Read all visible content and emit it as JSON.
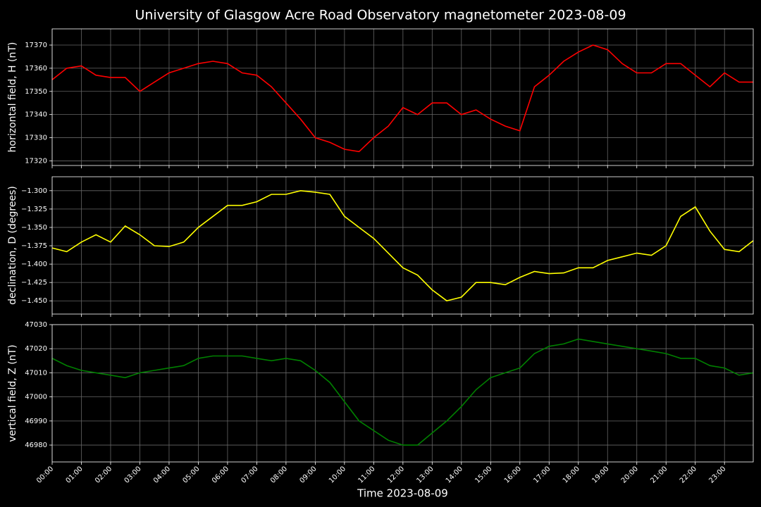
{
  "title": "University of Glasgow Acre Road Observatory magnetometer 2023-08-09",
  "chart_data": [
    {
      "type": "line",
      "ylabel": "horizontal field, H (nT)",
      "color": "#ff0000",
      "grid": true,
      "x": [
        "00:00",
        "00:30",
        "01:00",
        "01:30",
        "02:00",
        "02:30",
        "03:00",
        "03:30",
        "04:00",
        "04:30",
        "05:00",
        "05:30",
        "06:00",
        "06:30",
        "07:00",
        "07:30",
        "08:00",
        "08:30",
        "09:00",
        "09:30",
        "10:00",
        "10:30",
        "11:00",
        "11:30",
        "12:00",
        "12:30",
        "13:00",
        "13:30",
        "14:00",
        "14:30",
        "15:00",
        "15:30",
        "16:00",
        "16:30",
        "17:00",
        "17:30",
        "18:00",
        "18:30",
        "19:00",
        "19:30",
        "20:00",
        "20:30",
        "21:00",
        "21:30",
        "22:00",
        "22:30",
        "23:00",
        "23:30",
        "23:59"
      ],
      "values": [
        17355,
        17360,
        17361,
        17357,
        17356,
        17356,
        17350,
        17354,
        17358,
        17360,
        17362,
        17363,
        17362,
        17358,
        17357,
        17352,
        17345,
        17338,
        17330,
        17328,
        17325,
        17324,
        17330,
        17335,
        17343,
        17340,
        17345,
        17345,
        17340,
        17342,
        17338,
        17335,
        17333,
        17352,
        17357,
        17363,
        17367,
        17370,
        17368,
        17362,
        17358,
        17358,
        17362,
        17362,
        17357,
        17352,
        17358,
        17354,
        17354
      ],
      "xlim": [
        "00:00",
        "23:59"
      ],
      "xticks": [
        "00:00",
        "01:00",
        "02:00",
        "03:00",
        "04:00",
        "05:00",
        "06:00",
        "07:00",
        "08:00",
        "09:00",
        "10:00",
        "11:00",
        "12:00",
        "13:00",
        "14:00",
        "15:00",
        "16:00",
        "17:00",
        "18:00",
        "19:00",
        "20:00",
        "21:00",
        "22:00",
        "23:00"
      ],
      "ylim": [
        17318,
        17377
      ],
      "yticks": [
        17320,
        17330,
        17340,
        17350,
        17360,
        17370
      ]
    },
    {
      "type": "line",
      "ylabel": "declination, D (degrees)",
      "color": "#ffff00",
      "grid": true,
      "x": [
        "00:00",
        "00:30",
        "01:00",
        "01:30",
        "02:00",
        "02:30",
        "03:00",
        "03:30",
        "04:00",
        "04:30",
        "05:00",
        "05:30",
        "06:00",
        "06:30",
        "07:00",
        "07:30",
        "08:00",
        "08:30",
        "09:00",
        "09:30",
        "10:00",
        "10:30",
        "11:00",
        "11:30",
        "12:00",
        "12:30",
        "13:00",
        "13:30",
        "14:00",
        "14:30",
        "15:00",
        "15:30",
        "16:00",
        "16:30",
        "17:00",
        "17:30",
        "18:00",
        "18:30",
        "19:00",
        "19:30",
        "20:00",
        "20:30",
        "21:00",
        "21:30",
        "22:00",
        "22:30",
        "23:00",
        "23:30",
        "23:59"
      ],
      "values": [
        -1.378,
        -1.383,
        -1.37,
        -1.36,
        -1.37,
        -1.348,
        -1.36,
        -1.375,
        -1.376,
        -1.37,
        -1.35,
        -1.335,
        -1.32,
        -1.32,
        -1.315,
        -1.305,
        -1.305,
        -1.3,
        -1.302,
        -1.305,
        -1.335,
        -1.35,
        -1.365,
        -1.385,
        -1.405,
        -1.415,
        -1.435,
        -1.45,
        -1.445,
        -1.425,
        -1.425,
        -1.428,
        -1.418,
        -1.41,
        -1.413,
        -1.412,
        -1.405,
        -1.405,
        -1.395,
        -1.39,
        -1.385,
        -1.388,
        -1.375,
        -1.335,
        -1.322,
        -1.355,
        -1.38,
        -1.383,
        -1.368
      ],
      "xlim": [
        "00:00",
        "23:59"
      ],
      "xticks": [
        "00:00",
        "01:00",
        "02:00",
        "03:00",
        "04:00",
        "05:00",
        "06:00",
        "07:00",
        "08:00",
        "09:00",
        "10:00",
        "11:00",
        "12:00",
        "13:00",
        "14:00",
        "15:00",
        "16:00",
        "17:00",
        "18:00",
        "19:00",
        "20:00",
        "21:00",
        "22:00",
        "23:00"
      ],
      "ylim": [
        -1.468,
        -1.281
      ],
      "yticks": [
        {
          "value": -1.3,
          "label": "−1.300"
        },
        {
          "value": -1.325,
          "label": "−1.325"
        },
        {
          "value": -1.35,
          "label": "−1.350"
        },
        {
          "value": -1.375,
          "label": "−1.375"
        },
        {
          "value": -1.4,
          "label": "−1.400"
        },
        {
          "value": -1.425,
          "label": "−1.425"
        },
        {
          "value": -1.45,
          "label": "−1.450"
        }
      ]
    },
    {
      "type": "line",
      "ylabel": "vertical field, Z (nT)",
      "xlabel": "Time 2023-08-09",
      "color": "#008000",
      "grid": true,
      "x": [
        "00:00",
        "00:30",
        "01:00",
        "01:30",
        "02:00",
        "02:30",
        "03:00",
        "03:30",
        "04:00",
        "04:30",
        "05:00",
        "05:30",
        "06:00",
        "06:30",
        "07:00",
        "07:30",
        "08:00",
        "08:30",
        "09:00",
        "09:30",
        "10:00",
        "10:30",
        "11:00",
        "11:30",
        "12:00",
        "12:30",
        "13:00",
        "13:30",
        "14:00",
        "14:30",
        "15:00",
        "15:30",
        "16:00",
        "16:30",
        "17:00",
        "17:30",
        "18:00",
        "18:30",
        "19:00",
        "19:30",
        "20:00",
        "20:30",
        "21:00",
        "21:30",
        "22:00",
        "22:30",
        "23:00",
        "23:30",
        "23:59"
      ],
      "values": [
        47016,
        47013,
        47011,
        47010,
        47009,
        47008,
        47010,
        47011,
        47012,
        47013,
        47016,
        47017,
        47017,
        47017,
        47016,
        47015,
        47016,
        47015,
        47011,
        47006,
        46998,
        46990,
        46986,
        46982,
        46980,
        46980,
        46985,
        46990,
        46996,
        47003,
        47008,
        47010,
        47012,
        47018,
        47021,
        47022,
        47024,
        47023,
        47022,
        47021,
        47020,
        47019,
        47018,
        47016,
        47016,
        47013,
        47012,
        47009,
        47010
      ],
      "xlim": [
        "00:00",
        "23:59"
      ],
      "xticks": [
        "00:00",
        "01:00",
        "02:00",
        "03:00",
        "04:00",
        "05:00",
        "06:00",
        "07:00",
        "08:00",
        "09:00",
        "10:00",
        "11:00",
        "12:00",
        "13:00",
        "14:00",
        "15:00",
        "16:00",
        "17:00",
        "18:00",
        "19:00",
        "20:00",
        "21:00",
        "22:00",
        "23:00"
      ],
      "ylim": [
        46973,
        47030
      ],
      "yticks": [
        46980,
        46990,
        47000,
        47010,
        47020,
        47030
      ]
    }
  ]
}
